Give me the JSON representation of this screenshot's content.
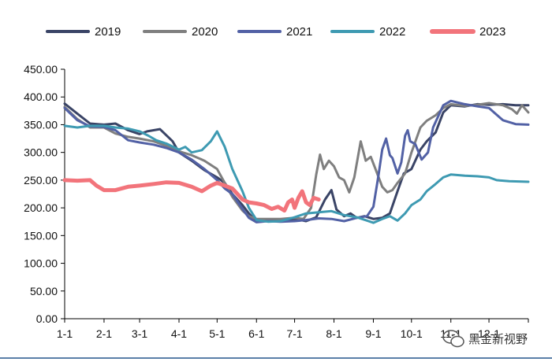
{
  "chart_data": {
    "type": "line",
    "title": "",
    "xlabel": "",
    "ylabel": "",
    "ylim": [
      0,
      450
    ],
    "yticks": [
      "0.00",
      "50.00",
      "100.00",
      "150.00",
      "200.00",
      "250.00",
      "300.00",
      "350.00",
      "400.00",
      "450.00"
    ],
    "xlim": [
      0,
      365
    ],
    "xticks": [
      {
        "label": "1-1",
        "day": 0
      },
      {
        "label": "2-1",
        "day": 31
      },
      {
        "label": "3-1",
        "day": 59
      },
      {
        "label": "4-1",
        "day": 90
      },
      {
        "label": "5-1",
        "day": 120
      },
      {
        "label": "6-1",
        "day": 151
      },
      {
        "label": "7-1",
        "day": 181
      },
      {
        "label": "8-1",
        "day": 212
      },
      {
        "label": "9-1",
        "day": 243
      },
      {
        "label": "10-1",
        "day": 273
      },
      {
        "label": "11-1",
        "day": 304
      },
      {
        "label": "12-1",
        "day": 334
      }
    ],
    "legend_position": "top",
    "series": [
      {
        "name": "2019",
        "color": "#3a4466",
        "points": [
          [
            0,
            388
          ],
          [
            10,
            370
          ],
          [
            20,
            352
          ],
          [
            31,
            350
          ],
          [
            40,
            352
          ],
          [
            50,
            340
          ],
          [
            59,
            333
          ],
          [
            65,
            338
          ],
          [
            75,
            342
          ],
          [
            85,
            320
          ],
          [
            90,
            300
          ],
          [
            100,
            285
          ],
          [
            110,
            268
          ],
          [
            120,
            255
          ],
          [
            126,
            245
          ],
          [
            132,
            225
          ],
          [
            140,
            205
          ],
          [
            145,
            190
          ],
          [
            151,
            175
          ],
          [
            160,
            178
          ],
          [
            170,
            178
          ],
          [
            181,
            180
          ],
          [
            190,
            176
          ],
          [
            198,
            183
          ],
          [
            205,
            215
          ],
          [
            210,
            232
          ],
          [
            214,
            197
          ],
          [
            220,
            185
          ],
          [
            225,
            190
          ],
          [
            230,
            182
          ],
          [
            236,
            185
          ],
          [
            243,
            180
          ],
          [
            250,
            182
          ],
          [
            256,
            190
          ],
          [
            262,
            230
          ],
          [
            267,
            262
          ],
          [
            273,
            270
          ],
          [
            280,
            305
          ],
          [
            285,
            320
          ],
          [
            292,
            336
          ],
          [
            298,
            372
          ],
          [
            304,
            385
          ],
          [
            315,
            383
          ],
          [
            325,
            387
          ],
          [
            334,
            386
          ],
          [
            345,
            387
          ],
          [
            355,
            385
          ],
          [
            365,
            385
          ]
        ]
      },
      {
        "name": "2020",
        "color": "#7f7f7f",
        "points": [
          [
            0,
            382
          ],
          [
            10,
            360
          ],
          [
            20,
            345
          ],
          [
            31,
            345
          ],
          [
            40,
            334
          ],
          [
            50,
            328
          ],
          [
            59,
            325
          ],
          [
            70,
            320
          ],
          [
            80,
            312
          ],
          [
            90,
            302
          ],
          [
            100,
            295
          ],
          [
            110,
            285
          ],
          [
            120,
            270
          ],
          [
            126,
            245
          ],
          [
            132,
            220
          ],
          [
            140,
            195
          ],
          [
            145,
            185
          ],
          [
            151,
            180
          ],
          [
            160,
            180
          ],
          [
            170,
            180
          ],
          [
            181,
            182
          ],
          [
            188,
            180
          ],
          [
            194,
            200
          ],
          [
            198,
            260
          ],
          [
            201,
            296
          ],
          [
            204,
            270
          ],
          [
            208,
            285
          ],
          [
            212,
            275
          ],
          [
            216,
            255
          ],
          [
            220,
            250
          ],
          [
            224,
            228
          ],
          [
            228,
            255
          ],
          [
            233,
            320
          ],
          [
            237,
            285
          ],
          [
            241,
            292
          ],
          [
            245,
            268
          ],
          [
            250,
            238
          ],
          [
            254,
            228
          ],
          [
            258,
            232
          ],
          [
            262,
            245
          ],
          [
            268,
            262
          ],
          [
            273,
            300
          ],
          [
            280,
            345
          ],
          [
            285,
            357
          ],
          [
            292,
            367
          ],
          [
            298,
            380
          ],
          [
            304,
            387
          ],
          [
            315,
            384
          ],
          [
            325,
            386
          ],
          [
            334,
            389
          ],
          [
            345,
            385
          ],
          [
            352,
            378
          ],
          [
            356,
            370
          ],
          [
            360,
            385
          ],
          [
            365,
            372
          ]
        ]
      },
      {
        "name": "2021",
        "color": "#5261a5",
        "points": [
          [
            0,
            380
          ],
          [
            10,
            358
          ],
          [
            20,
            347
          ],
          [
            31,
            346
          ],
          [
            40,
            340
          ],
          [
            50,
            322
          ],
          [
            59,
            318
          ],
          [
            70,
            314
          ],
          [
            80,
            308
          ],
          [
            90,
            300
          ],
          [
            100,
            287
          ],
          [
            110,
            270
          ],
          [
            120,
            250
          ],
          [
            126,
            235
          ],
          [
            132,
            225
          ],
          [
            140,
            198
          ],
          [
            145,
            182
          ],
          [
            151,
            174
          ],
          [
            160,
            176
          ],
          [
            170,
            175
          ],
          [
            181,
            176
          ],
          [
            190,
            178
          ],
          [
            200,
            181
          ],
          [
            210,
            180
          ],
          [
            220,
            176
          ],
          [
            230,
            182
          ],
          [
            238,
            185
          ],
          [
            243,
            202
          ],
          [
            247,
            258
          ],
          [
            250,
            305
          ],
          [
            253,
            325
          ],
          [
            256,
            295
          ],
          [
            258,
            290
          ],
          [
            262,
            262
          ],
          [
            265,
            282
          ],
          [
            268,
            330
          ],
          [
            270,
            340
          ],
          [
            272,
            320
          ],
          [
            276,
            315
          ],
          [
            281,
            287
          ],
          [
            286,
            300
          ],
          [
            290,
            345
          ],
          [
            298,
            385
          ],
          [
            304,
            393
          ],
          [
            315,
            387
          ],
          [
            325,
            383
          ],
          [
            334,
            380
          ],
          [
            345,
            358
          ],
          [
            355,
            351
          ],
          [
            365,
            350
          ]
        ]
      },
      {
        "name": "2022",
        "color": "#3e9ab2",
        "points": [
          [
            0,
            348
          ],
          [
            10,
            345
          ],
          [
            20,
            348
          ],
          [
            31,
            348
          ],
          [
            40,
            345
          ],
          [
            50,
            343
          ],
          [
            59,
            338
          ],
          [
            66,
            330
          ],
          [
            72,
            322
          ],
          [
            80,
            316
          ],
          [
            90,
            305
          ],
          [
            95,
            310
          ],
          [
            100,
            300
          ],
          [
            108,
            304
          ],
          [
            115,
            320
          ],
          [
            120,
            338
          ],
          [
            126,
            310
          ],
          [
            132,
            270
          ],
          [
            140,
            230
          ],
          [
            145,
            200
          ],
          [
            151,
            178
          ],
          [
            160,
            175
          ],
          [
            170,
            176
          ],
          [
            181,
            183
          ],
          [
            190,
            190
          ],
          [
            200,
            192
          ],
          [
            210,
            194
          ],
          [
            220,
            187
          ],
          [
            230,
            183
          ],
          [
            238,
            177
          ],
          [
            243,
            173
          ],
          [
            250,
            180
          ],
          [
            256,
            185
          ],
          [
            262,
            177
          ],
          [
            268,
            190
          ],
          [
            273,
            205
          ],
          [
            280,
            215
          ],
          [
            285,
            230
          ],
          [
            292,
            243
          ],
          [
            298,
            255
          ],
          [
            304,
            260
          ],
          [
            315,
            258
          ],
          [
            325,
            257
          ],
          [
            334,
            255
          ],
          [
            340,
            250
          ],
          [
            350,
            248
          ],
          [
            365,
            247
          ]
        ]
      },
      {
        "name": "2023",
        "color": "#f2747b",
        "points": [
          [
            0,
            250
          ],
          [
            10,
            249
          ],
          [
            20,
            250
          ],
          [
            25,
            240
          ],
          [
            31,
            232
          ],
          [
            40,
            232
          ],
          [
            50,
            238
          ],
          [
            59,
            240
          ],
          [
            70,
            243
          ],
          [
            80,
            246
          ],
          [
            90,
            245
          ],
          [
            100,
            238
          ],
          [
            108,
            230
          ],
          [
            115,
            240
          ],
          [
            120,
            245
          ],
          [
            126,
            240
          ],
          [
            132,
            235
          ],
          [
            140,
            215
          ],
          [
            145,
            210
          ],
          [
            151,
            208
          ],
          [
            157,
            205
          ],
          [
            163,
            198
          ],
          [
            168,
            202
          ],
          [
            173,
            195
          ],
          [
            176,
            210
          ],
          [
            179,
            215
          ],
          [
            181,
            200
          ],
          [
            184,
            218
          ],
          [
            187,
            230
          ],
          [
            190,
            210
          ],
          [
            193,
            205
          ],
          [
            196,
            218
          ],
          [
            200,
            215
          ]
        ]
      }
    ]
  },
  "watermark": {
    "text": "黑金新视野",
    "icon": "wechat-icon"
  }
}
